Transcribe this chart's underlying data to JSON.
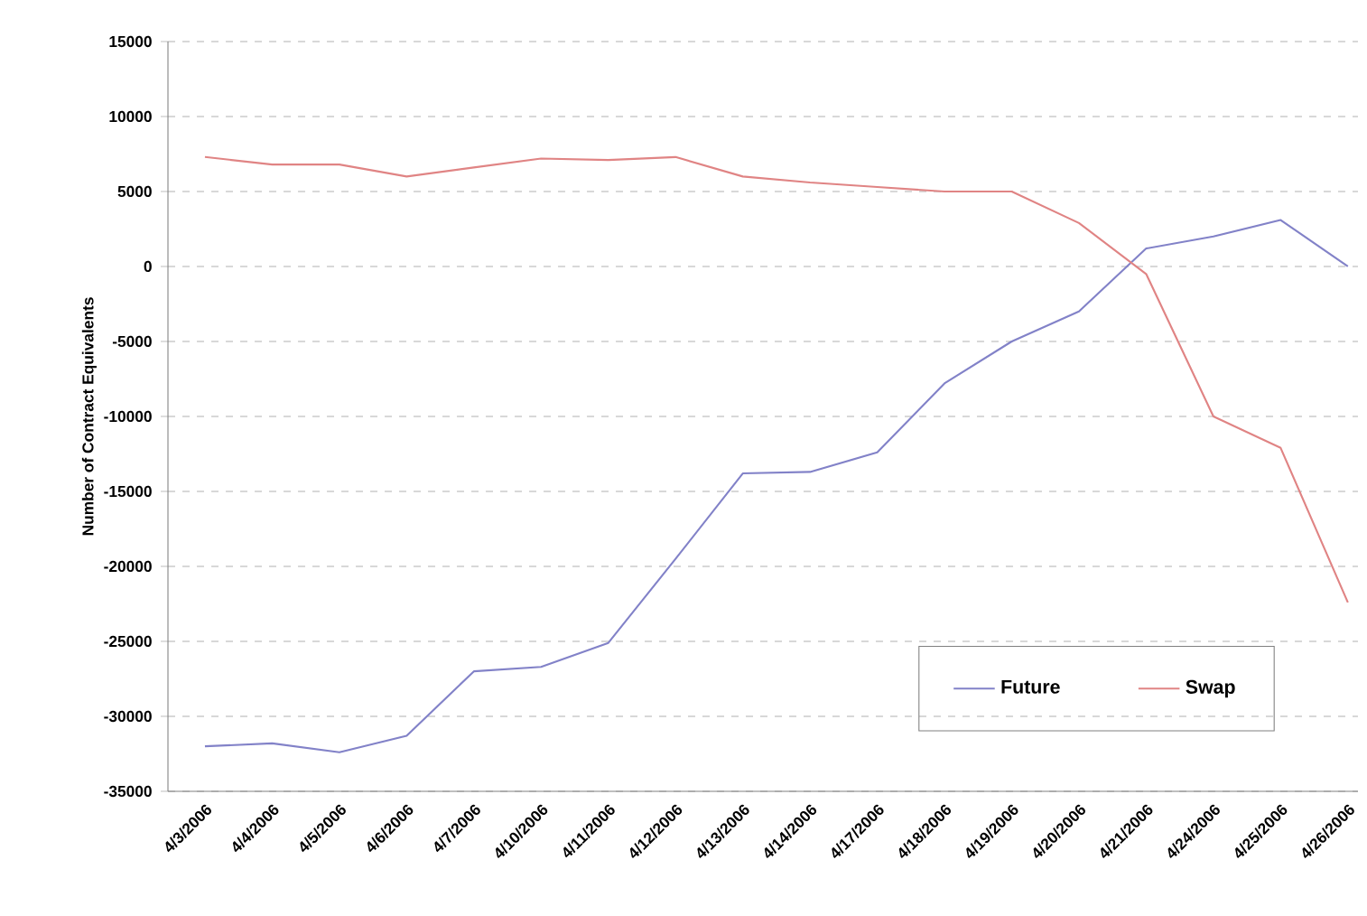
{
  "chart_data": {
    "type": "line",
    "ylabel": "Number of Contract Equivalents",
    "categories": [
      "4/3/2006",
      "4/4/2006",
      "4/5/2006",
      "4/6/2006",
      "4/7/2006",
      "4/10/2006",
      "4/11/2006",
      "4/12/2006",
      "4/13/2006",
      "4/14/2006",
      "4/17/2006",
      "4/18/2006",
      "4/19/2006",
      "4/20/2006",
      "4/21/2006",
      "4/24/2006",
      "4/25/2006",
      "4/26/2006"
    ],
    "series": [
      {
        "name": "Future",
        "color": "#8282c8",
        "values": [
          -32000,
          -31800,
          -32400,
          -31300,
          -27000,
          -26700,
          -25100,
          -19500,
          -13800,
          -13700,
          -12400,
          -7800,
          -5000,
          -3000,
          1200,
          2000,
          3100,
          0
        ]
      },
      {
        "name": "Swap",
        "color": "#e08484",
        "values": [
          7300,
          6800,
          6800,
          6000,
          6600,
          7200,
          7100,
          7300,
          6000,
          5600,
          5300,
          5000,
          5000,
          2900,
          -500,
          -10000,
          -12100,
          -22400
        ]
      }
    ],
    "ylim": [
      -35000,
      15000
    ],
    "yticks": [
      -35000,
      -30000,
      -25000,
      -20000,
      -15000,
      -10000,
      -5000,
      0,
      5000,
      10000,
      15000
    ],
    "grid": "y",
    "legend": "bottom right",
    "marker": "none",
    "line_style": "solid"
  }
}
